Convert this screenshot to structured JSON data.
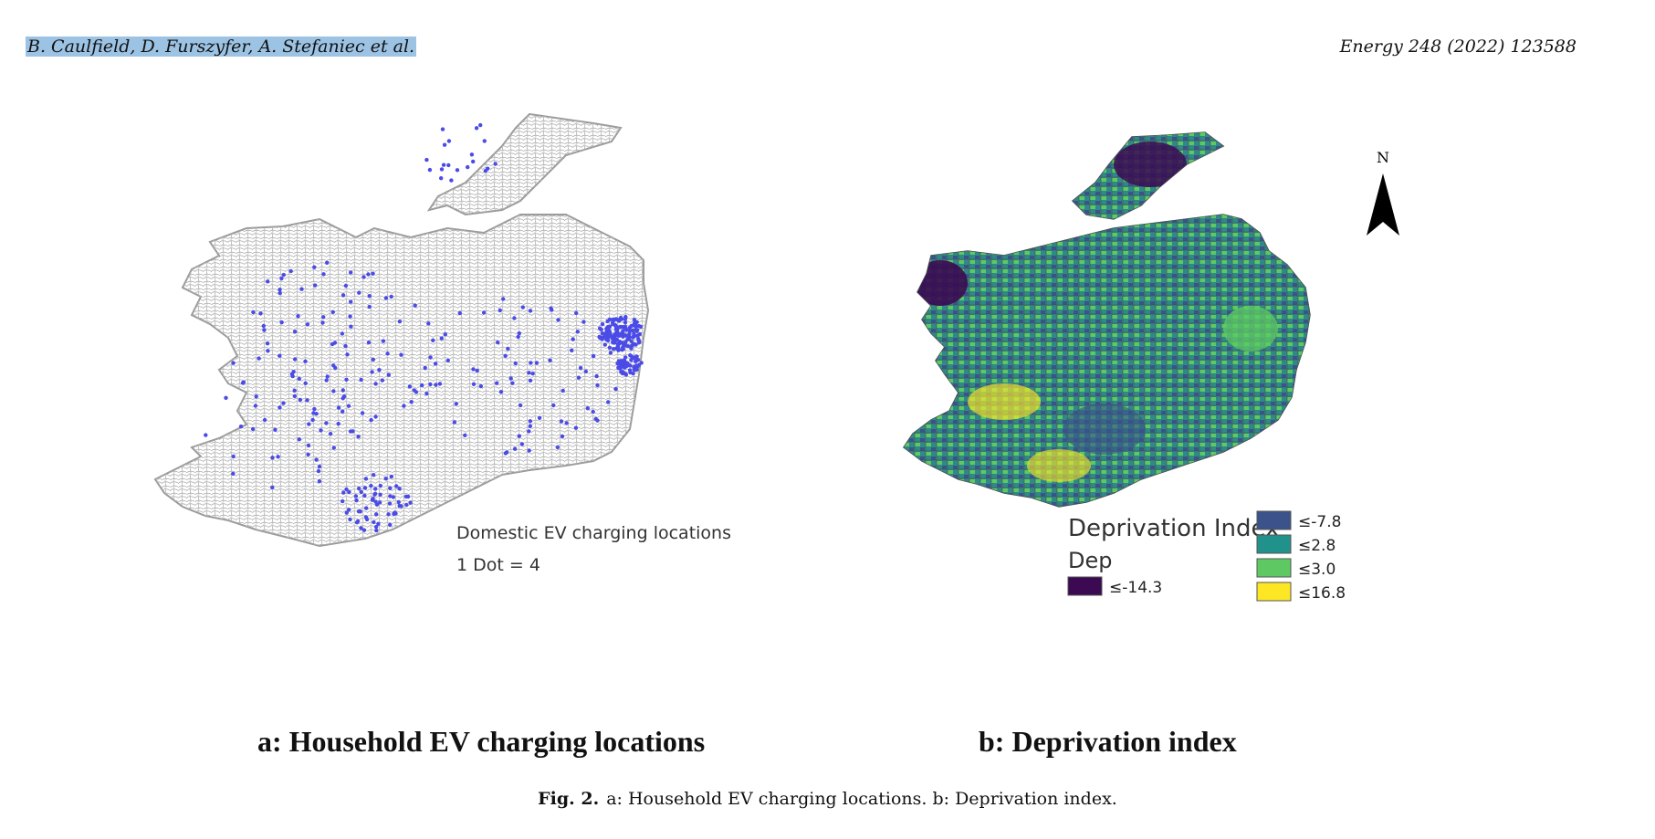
{
  "header": {
    "authors": "B. Caulfield, D. Furszyfer, A. Stefaniec et al.",
    "journal": "Energy 248 (2022) 123588"
  },
  "panel_a": {
    "title": "a: Household EV charging locations",
    "legend_title": "Domestic EV charging locations",
    "legend_scale": "1 Dot = 4",
    "colors": {
      "outline": "#a8a8a8",
      "dot": "#4b4be8",
      "fill": "#ffffff"
    }
  },
  "panel_b": {
    "title": "b: Deprivation index",
    "north_label": "N",
    "legend_title": "Deprivation Index",
    "legend_subtitle": "Dep",
    "classes": [
      {
        "label": "≤-14.3",
        "color": "#3b0a52"
      },
      {
        "label": "≤-7.8",
        "color": "#3b528b"
      },
      {
        "label": "≤2.8",
        "color": "#21918c"
      },
      {
        "label": "≤3.0",
        "color": "#5ec962"
      },
      {
        "label": "≤16.8",
        "color": "#fde725"
      }
    ]
  },
  "caption": {
    "label": "Fig. 2.",
    "text": "a: Household EV charging locations. b: Deprivation index."
  }
}
